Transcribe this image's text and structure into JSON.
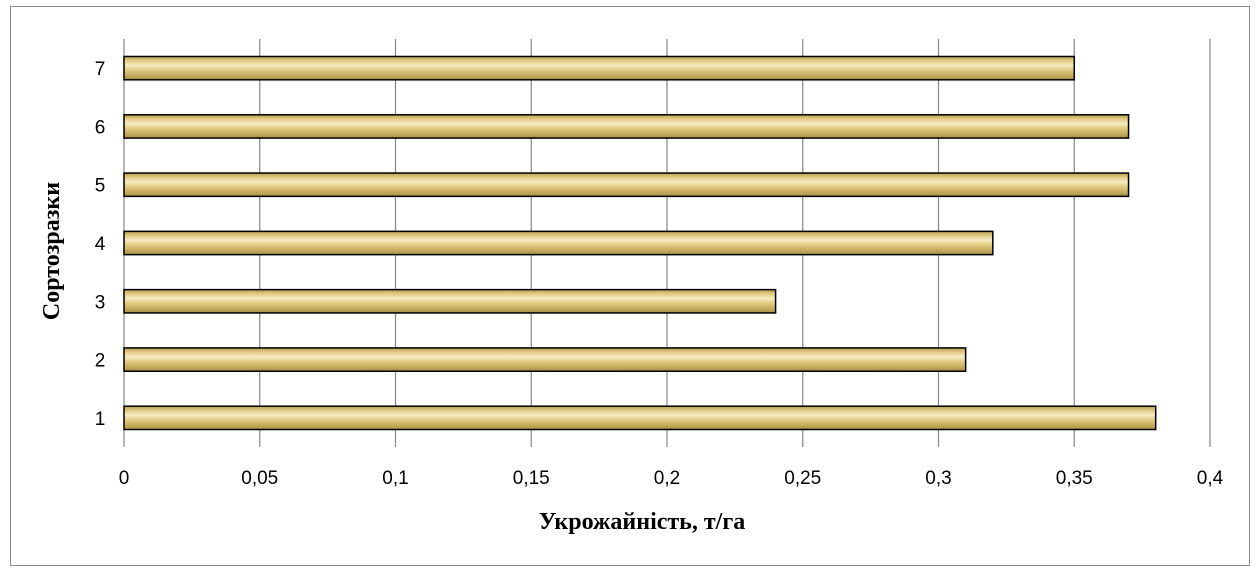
{
  "chart_data": {
    "type": "bar",
    "orientation": "horizontal",
    "categories": [
      "1",
      "2",
      "3",
      "4",
      "5",
      "6",
      "7"
    ],
    "values": [
      0.38,
      0.31,
      0.24,
      0.32,
      0.37,
      0.37,
      0.35
    ],
    "xlabel": "Укрожайність, т/га",
    "ylabel": "Сортозразки",
    "xlim": [
      0,
      0.4
    ],
    "x_ticks": [
      "0",
      "0,05",
      "0,1",
      "0,15",
      "0,2",
      "0,25",
      "0,3",
      "0,35",
      "0,4"
    ],
    "grid": "vertical",
    "legend": "none",
    "bar_color": "#e6d08a",
    "bar_stroke": "#000000"
  }
}
